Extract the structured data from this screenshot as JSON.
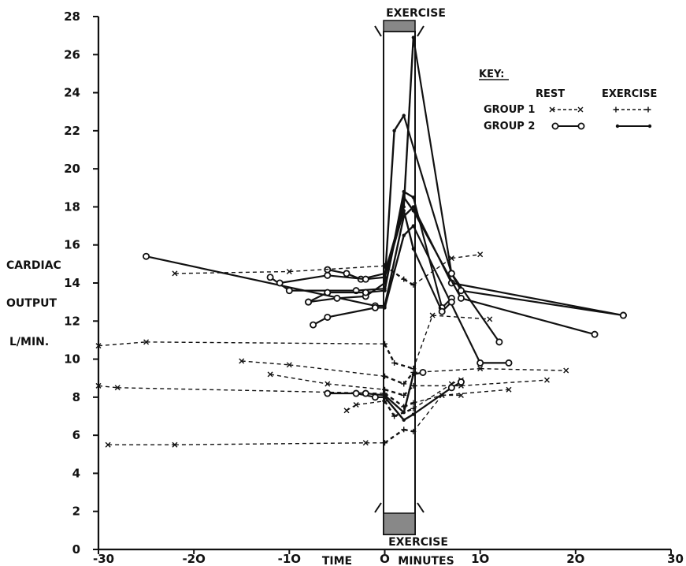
{
  "chart_data": {
    "type": "line",
    "title": "",
    "ylabel_lines": [
      "CARDIAC",
      "OUTPUT",
      "L/MIN."
    ],
    "xlabel_left": "TIME",
    "xlabel_right": "MINUTES",
    "exercise_label": "EXERCISE",
    "xlim": [
      -30,
      30
    ],
    "ylim": [
      0,
      28
    ],
    "x_ticks": [
      -30,
      -20,
      -10,
      0,
      10,
      20,
      30
    ],
    "x_tick_labels": [
      "-30",
      "-2O",
      "-1O",
      "O",
      "1O",
      "2O",
      "30"
    ],
    "y_ticks": [
      0,
      2,
      4,
      6,
      8,
      10,
      12,
      14,
      16,
      18,
      20,
      22,
      24,
      26,
      28
    ],
    "y_tick_labels": [
      "0",
      "2",
      "4",
      "6",
      "8",
      "10",
      "12",
      "14",
      "16",
      "18",
      "20",
      "22",
      "24",
      "26",
      "28"
    ],
    "exercise_band": [
      0,
      3
    ],
    "key": {
      "title": "KEY:",
      "columns": [
        "REST",
        "EXERCISE"
      ],
      "rows": [
        {
          "label": "GROUP 1",
          "rest_style": "x--x",
          "exercise_style": "+--+"
        },
        {
          "label": "GROUP 2",
          "rest_style": "o—o",
          "exercise_style": "•—•"
        }
      ]
    },
    "series": [
      {
        "group": 2,
        "points": [
          [
            -25,
            15.4
          ],
          [
            -1,
            12.8
          ],
          [
            0,
            12.8
          ],
          [
            2,
            17.5
          ],
          [
            3,
            18.0
          ],
          [
            7,
            14.0
          ],
          [
            25,
            12.3
          ]
        ]
      },
      {
        "group": 2,
        "points": [
          [
            -12,
            14.3
          ],
          [
            -10,
            13.6
          ],
          [
            -3,
            13.6
          ],
          [
            0,
            13.7
          ],
          [
            2,
            18.5
          ],
          [
            3,
            17.8
          ],
          [
            8,
            13.2
          ],
          [
            22,
            11.3
          ]
        ]
      },
      {
        "group": 2,
        "points": [
          [
            -8,
            13.0
          ],
          [
            -5,
            13.2
          ],
          [
            -2,
            13.3
          ],
          [
            0,
            14.0
          ],
          [
            1,
            22.0
          ],
          [
            2,
            22.8
          ],
          [
            7,
            14.5
          ],
          [
            12,
            10.9
          ]
        ]
      },
      {
        "group": 2,
        "points": [
          [
            -7.5,
            11.8
          ],
          [
            -6,
            12.2
          ],
          [
            -1,
            12.7
          ],
          [
            0,
            12.7
          ],
          [
            2,
            16.5
          ],
          [
            3,
            17.0
          ],
          [
            10,
            9.8
          ],
          [
            13,
            9.8
          ]
        ]
      },
      {
        "group": 2,
        "points": [
          [
            -6,
            14.7
          ],
          [
            -4,
            14.5
          ],
          [
            -2.5,
            14.2
          ],
          [
            0,
            14.5
          ],
          [
            2,
            18.0
          ],
          [
            3,
            26.9
          ],
          [
            7,
            14.5
          ],
          [
            8,
            13.6
          ],
          [
            25,
            12.3
          ]
        ]
      },
      {
        "group": 2,
        "points": [
          [
            -8,
            13.0
          ],
          [
            -6,
            13.5
          ],
          [
            -2,
            13.5
          ],
          [
            0,
            13.6
          ],
          [
            2,
            18.8
          ],
          [
            3,
            18.5
          ],
          [
            6,
            12.7
          ],
          [
            7,
            13.2
          ]
        ]
      },
      {
        "group": 2,
        "points": [
          [
            -11,
            14.0
          ],
          [
            -6,
            14.4
          ],
          [
            -2,
            14.2
          ],
          [
            0,
            14.3
          ],
          [
            2,
            17.8
          ],
          [
            3,
            15.8
          ],
          [
            6,
            12.5
          ],
          [
            7,
            13.0
          ]
        ]
      },
      {
        "group": 1,
        "points": [
          [
            -22,
            14.5
          ],
          [
            -10,
            14.6
          ],
          [
            0,
            14.9
          ],
          [
            2,
            14.2
          ],
          [
            3,
            13.9
          ],
          [
            7,
            15.3
          ],
          [
            10,
            15.5
          ]
        ]
      },
      {
        "group": 1,
        "points": [
          [
            -30,
            10.7
          ],
          [
            -25,
            10.9
          ],
          [
            0,
            10.8
          ],
          [
            1,
            9.8
          ],
          [
            3,
            9.5
          ],
          [
            5,
            12.3
          ],
          [
            11,
            12.1
          ]
        ]
      },
      {
        "group": 1,
        "points": [
          [
            -15,
            9.9
          ],
          [
            -10,
            9.7
          ],
          [
            0,
            9.1
          ],
          [
            2,
            8.7
          ],
          [
            3,
            9.3
          ],
          [
            10,
            9.5
          ],
          [
            19,
            9.4
          ]
        ]
      },
      {
        "group": 1,
        "points": [
          [
            -12,
            9.2
          ],
          [
            -6,
            8.7
          ],
          [
            0,
            8.4
          ],
          [
            2,
            8.1
          ],
          [
            3,
            8.6
          ],
          [
            8,
            8.6
          ],
          [
            17,
            8.9
          ]
        ]
      },
      {
        "group": 1,
        "points": [
          [
            -30,
            8.6
          ],
          [
            -28,
            8.5
          ],
          [
            0,
            8.2
          ],
          [
            2,
            7.5
          ],
          [
            3,
            7.7
          ],
          [
            6,
            8.1
          ],
          [
            13,
            8.4
          ]
        ]
      },
      {
        "group": 1,
        "points": [
          [
            -29,
            5.5
          ],
          [
            -22,
            5.5
          ],
          [
            -2,
            5.6
          ],
          [
            0,
            5.6
          ],
          [
            2,
            6.3
          ],
          [
            3,
            6.2
          ],
          [
            6,
            8.1
          ],
          [
            8,
            8.1
          ]
        ]
      },
      {
        "group": 1,
        "points": [
          [
            -4,
            7.3
          ],
          [
            -3,
            7.6
          ],
          [
            0,
            7.8
          ],
          [
            1,
            7.0
          ],
          [
            3,
            7.4
          ],
          [
            7,
            8.7
          ],
          [
            8,
            8.9
          ]
        ]
      },
      {
        "group": 2,
        "points": [
          [
            -6,
            8.2
          ],
          [
            -3,
            8.2
          ],
          [
            -1,
            8.0
          ],
          [
            0,
            8.0
          ],
          [
            2,
            6.8
          ],
          [
            3,
            7.1
          ],
          [
            7,
            8.5
          ],
          [
            8,
            8.8
          ]
        ]
      },
      {
        "group": 2,
        "points": [
          [
            -2,
            8.2
          ],
          [
            0,
            8.1
          ],
          [
            2,
            7.2
          ],
          [
            3,
            9.2
          ],
          [
            4,
            9.3
          ]
        ]
      }
    ]
  }
}
